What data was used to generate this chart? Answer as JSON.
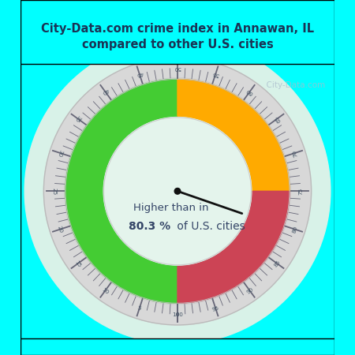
{
  "title": "City-Data.com crime index in Annawan, IL\ncompared to other U.S. cities",
  "title_color": "#1a3355",
  "title_bg": "#00ffff",
  "chart_bg_gradient_top": "#c8eee0",
  "chart_bg_gradient_bot": "#e8f8f0",
  "inner_circle_color": "#ddf0e8",
  "outer_bg": "#00ffff",
  "value": 80.3,
  "annotation_line1": "Higher than in",
  "annotation_line2_normal": " of U.S. cities",
  "annotation_bold": "80.3 %",
  "color_green": "#44cc33",
  "color_orange": "#ffaa00",
  "color_red": "#cc4455",
  "color_gray_ring": "#d8d8d8",
  "needle_color": "#111111",
  "watermark": "  City-Data.com",
  "watermark_color": "#aabbcc"
}
